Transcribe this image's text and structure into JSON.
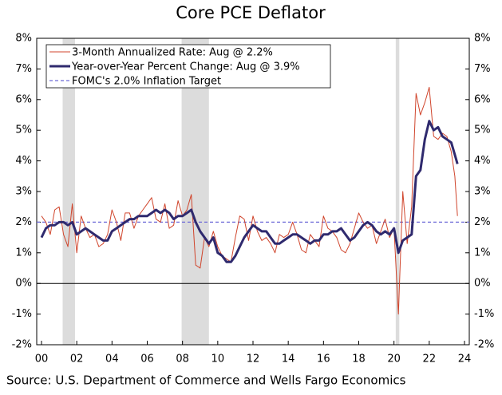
{
  "chart_data": {
    "type": "line",
    "title": "Core PCE Deflator",
    "source": "Source: U.S. Department of Commerce and Wells Fargo Economics",
    "x": [
      2000,
      2000.25,
      2000.5,
      2000.75,
      2001,
      2001.25,
      2001.5,
      2001.75,
      2002,
      2002.25,
      2002.5,
      2002.75,
      2003,
      2003.25,
      2003.5,
      2003.75,
      2004,
      2004.25,
      2004.5,
      2004.75,
      2005,
      2005.25,
      2005.5,
      2005.75,
      2006,
      2006.25,
      2006.5,
      2006.75,
      2007,
      2007.25,
      2007.5,
      2007.75,
      2008,
      2008.25,
      2008.5,
      2008.75,
      2009,
      2009.25,
      2009.5,
      2009.75,
      2010,
      2010.25,
      2010.5,
      2010.75,
      2011,
      2011.25,
      2011.5,
      2011.75,
      2012,
      2012.25,
      2012.5,
      2012.75,
      2013,
      2013.25,
      2013.5,
      2013.75,
      2014,
      2014.25,
      2014.5,
      2014.75,
      2015,
      2015.25,
      2015.5,
      2015.75,
      2016,
      2016.25,
      2016.5,
      2016.75,
      2017,
      2017.25,
      2017.5,
      2017.75,
      2018,
      2018.25,
      2018.5,
      2018.75,
      2019,
      2019.25,
      2019.5,
      2019.75,
      2020,
      2020.25,
      2020.5,
      2020.75,
      2021,
      2021.25,
      2021.5,
      2021.75,
      2022,
      2022.25,
      2022.5,
      2022.75,
      2023,
      2023.25,
      2023.45,
      2023.6
    ],
    "series": [
      {
        "name": "3-Month Annualized Rate: Aug @ 2.2%",
        "color": "#d0452c",
        "width": 1,
        "values": [
          2.2,
          2.0,
          1.6,
          2.4,
          2.5,
          1.6,
          1.2,
          2.6,
          1.0,
          2.2,
          1.8,
          1.5,
          1.6,
          1.2,
          1.3,
          1.6,
          2.4,
          2.0,
          1.4,
          2.3,
          2.3,
          1.8,
          2.2,
          2.4,
          2.6,
          2.8,
          2.1,
          2.0,
          2.6,
          1.8,
          1.9,
          2.7,
          2.2,
          2.4,
          2.9,
          0.6,
          0.5,
          1.5,
          1.2,
          1.7,
          1.2,
          0.9,
          0.8,
          0.7,
          1.5,
          2.2,
          2.1,
          1.4,
          2.2,
          1.7,
          1.4,
          1.5,
          1.3,
          1.0,
          1.6,
          1.5,
          1.6,
          2.0,
          1.6,
          1.1,
          1.0,
          1.6,
          1.4,
          1.2,
          2.2,
          1.8,
          1.7,
          1.5,
          1.1,
          1.0,
          1.3,
          1.8,
          2.3,
          2.0,
          1.8,
          1.9,
          1.3,
          1.7,
          2.1,
          1.5,
          1.8,
          -1.0,
          3.0,
          1.3,
          2.5,
          6.2,
          5.5,
          5.9,
          6.4,
          4.8,
          4.7,
          4.9,
          4.8,
          4.3,
          3.5,
          2.2
        ]
      },
      {
        "name": "Year-over-Year Percent Change: Aug @ 3.9%",
        "color": "#2f2a6e",
        "width": 3,
        "values": [
          1.5,
          1.8,
          1.9,
          1.9,
          2.0,
          2.0,
          1.9,
          2.0,
          1.6,
          1.7,
          1.8,
          1.7,
          1.6,
          1.5,
          1.4,
          1.4,
          1.7,
          1.8,
          1.9,
          2.0,
          2.1,
          2.1,
          2.2,
          2.2,
          2.2,
          2.3,
          2.4,
          2.3,
          2.4,
          2.3,
          2.1,
          2.2,
          2.2,
          2.3,
          2.4,
          2.0,
          1.7,
          1.5,
          1.3,
          1.5,
          1.0,
          0.9,
          0.7,
          0.7,
          0.9,
          1.2,
          1.5,
          1.7,
          1.9,
          1.8,
          1.7,
          1.7,
          1.5,
          1.3,
          1.3,
          1.4,
          1.5,
          1.6,
          1.6,
          1.5,
          1.4,
          1.3,
          1.4,
          1.4,
          1.6,
          1.6,
          1.7,
          1.7,
          1.8,
          1.6,
          1.4,
          1.5,
          1.7,
          1.9,
          2.0,
          1.9,
          1.7,
          1.6,
          1.7,
          1.6,
          1.8,
          1.0,
          1.4,
          1.5,
          1.6,
          3.5,
          3.7,
          4.7,
          5.3,
          5.0,
          5.1,
          4.8,
          4.7,
          4.6,
          4.2,
          3.9
        ]
      }
    ],
    "reference_line": {
      "name": "FOMC's 2.0% Inflation Target",
      "value": 2.0,
      "color": "#6e6ad8",
      "dashed": true
    },
    "shaded_ranges": [
      [
        2001.2,
        2001.9
      ],
      [
        2007.95,
        2009.5
      ],
      [
        2020.1,
        2020.3
      ]
    ],
    "shade_color": "#dcdcdc",
    "zero_line": true,
    "legend": "upper left",
    "xlim": [
      2000,
      2024
    ],
    "xticks": [
      {
        "value": 2000,
        "label": "00"
      },
      {
        "value": 2002,
        "label": "02"
      },
      {
        "value": 2004,
        "label": "04"
      },
      {
        "value": 2006,
        "label": "06"
      },
      {
        "value": 2008,
        "label": "08"
      },
      {
        "value": 2010,
        "label": "10"
      },
      {
        "value": 2012,
        "label": "12"
      },
      {
        "value": 2014,
        "label": "14"
      },
      {
        "value": 2016,
        "label": "16"
      },
      {
        "value": 2018,
        "label": "18"
      },
      {
        "value": 2020,
        "label": "20"
      },
      {
        "value": 2022,
        "label": "22"
      },
      {
        "value": 2024,
        "label": "24"
      }
    ],
    "ylim": [
      -2,
      8
    ],
    "yticks": [
      {
        "value": -2,
        "label": "-2%"
      },
      {
        "value": -1,
        "label": "-1%"
      },
      {
        "value": 0,
        "label": "0%"
      },
      {
        "value": 1,
        "label": "1%"
      },
      {
        "value": 2,
        "label": "2%"
      },
      {
        "value": 3,
        "label": "3%"
      },
      {
        "value": 4,
        "label": "4%"
      },
      {
        "value": 5,
        "label": "5%"
      },
      {
        "value": 6,
        "label": "6%"
      },
      {
        "value": 7,
        "label": "7%"
      },
      {
        "value": 8,
        "label": "8%"
      }
    ],
    "y2lim": [
      -2,
      8
    ],
    "y2ticks": [
      {
        "value": -2,
        "label": "-2%"
      },
      {
        "value": -1,
        "label": "-1%"
      },
      {
        "value": 0,
        "label": "0%"
      },
      {
        "value": 1,
        "label": "1%"
      },
      {
        "value": 2,
        "label": "2%"
      },
      {
        "value": 3,
        "label": "3%"
      },
      {
        "value": 4,
        "label": "4%"
      },
      {
        "value": 5,
        "label": "5%"
      },
      {
        "value": 6,
        "label": "6%"
      },
      {
        "value": 7,
        "label": "7%"
      },
      {
        "value": 8,
        "label": "8%"
      }
    ]
  }
}
